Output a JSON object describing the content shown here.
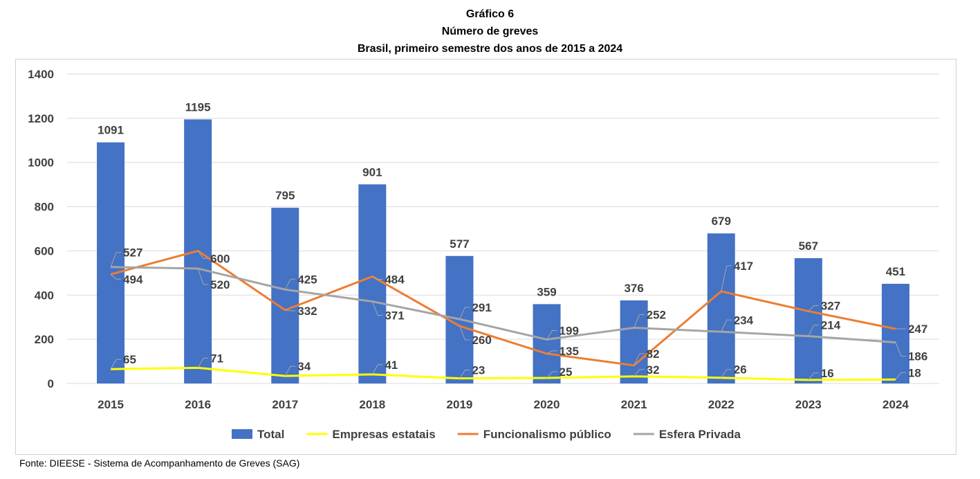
{
  "chart_data": {
    "type": "bar",
    "title": "Gráfico 6",
    "subtitle": "Número de greves",
    "subtitle2": "Brasil, primeiro semestre dos anos de 2015 a 2024",
    "categories": [
      "2015",
      "2016",
      "2017",
      "2018",
      "2019",
      "2020",
      "2021",
      "2022",
      "2023",
      "2024"
    ],
    "ylim": [
      0,
      1400
    ],
    "yticks": [
      0,
      200,
      400,
      600,
      800,
      1000,
      1200,
      1400
    ],
    "grid": true,
    "legend_position": "bottom",
    "series": [
      {
        "name": "Total",
        "kind": "bar",
        "color": "#4472C4",
        "values": [
          1091,
          1195,
          795,
          901,
          577,
          359,
          376,
          679,
          567,
          451
        ]
      },
      {
        "name": "Empresas estatais",
        "kind": "line",
        "color": "#FFFF00",
        "values": [
          65,
          71,
          34,
          41,
          23,
          25,
          32,
          26,
          16,
          18
        ]
      },
      {
        "name": "Funcionalismo público",
        "kind": "line",
        "color": "#ED7D31",
        "values": [
          494,
          600,
          332,
          484,
          260,
          135,
          82,
          417,
          327,
          247
        ]
      },
      {
        "name": "Esfera Privada",
        "kind": "line",
        "color": "#A5A5A5",
        "values": [
          527,
          520,
          425,
          371,
          291,
          199,
          252,
          234,
          214,
          186
        ]
      }
    ]
  },
  "source": "Fonte: DIEESE - Sistema de Acompanhamento de Greves (SAG)"
}
